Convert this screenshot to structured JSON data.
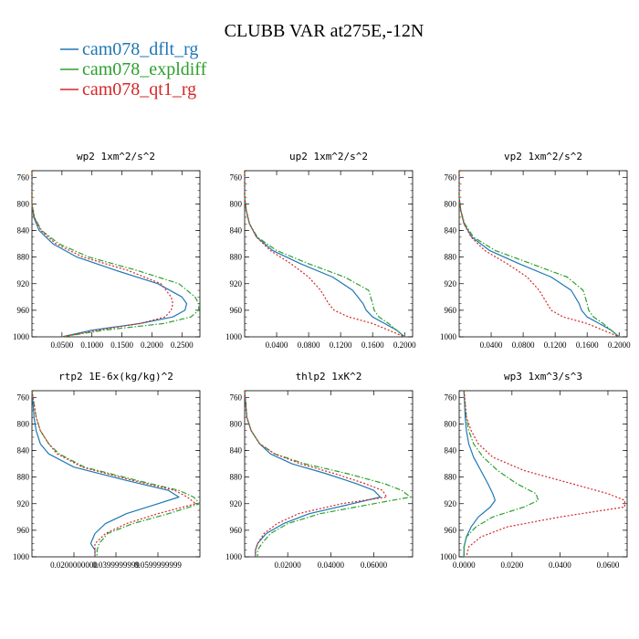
{
  "figure": {
    "title": "CLUBB VAR at275E,-12N"
  },
  "legend": [
    {
      "name": "cam078_dflt_rg",
      "color": "#1f77b4"
    },
    {
      "name": "cam078_expldiff",
      "color": "#2ca02c"
    },
    {
      "name": "cam078_qt1_rg",
      "color": "#d62728"
    }
  ],
  "chart_data": [
    {
      "type": "line",
      "title": "wp2  1xm^2/s^2",
      "xlim": [
        0,
        0.28
      ],
      "ylim": [
        1000,
        750
      ],
      "xticks": [
        "0.0500",
        "0.1000",
        "0.1500",
        "0.2000",
        "0.2500"
      ],
      "xtick_values": [
        0.05,
        0.1,
        0.15,
        0.2,
        0.25
      ],
      "yticks": [
        760,
        800,
        840,
        880,
        920,
        960,
        1000
      ],
      "y": [
        750,
        800,
        820,
        840,
        860,
        880,
        900,
        920,
        940,
        950,
        960,
        970,
        980,
        990,
        1000
      ],
      "series": [
        {
          "name": "cam078_dflt_rg",
          "x": [
            0,
            0,
            0.003,
            0.012,
            0.035,
            0.075,
            0.14,
            0.21,
            0.25,
            0.258,
            0.255,
            0.235,
            0.18,
            0.1,
            0.05
          ],
          "style": "solid"
        },
        {
          "name": "cam078_expldiff",
          "x": [
            0,
            0,
            0.004,
            0.016,
            0.045,
            0.095,
            0.175,
            0.245,
            0.272,
            0.278,
            0.278,
            0.265,
            0.22,
            0.12,
            0.05
          ],
          "style": "dashdot"
        },
        {
          "name": "cam078_qt1_rg",
          "x": [
            0,
            0,
            0.004,
            0.015,
            0.04,
            0.085,
            0.16,
            0.215,
            0.232,
            0.235,
            0.232,
            0.222,
            0.18,
            0.11,
            0.05
          ],
          "style": "dotted"
        }
      ]
    },
    {
      "type": "line",
      "title": "up2  1xm^2/s^2",
      "xlim": [
        0,
        0.21
      ],
      "ylim": [
        1000,
        750
      ],
      "xticks": [
        "0.0400",
        "0.0800",
        "0.1200",
        "0.1600",
        "0.2000"
      ],
      "xtick_values": [
        0.04,
        0.08,
        0.12,
        0.16,
        0.2
      ],
      "yticks": [
        760,
        800,
        840,
        880,
        920,
        960,
        1000
      ],
      "y": [
        750,
        790,
        810,
        830,
        850,
        870,
        890,
        910,
        930,
        950,
        960,
        970,
        980,
        990,
        1000
      ],
      "series": [
        {
          "name": "cam078_dflt_rg",
          "x": [
            0,
            0,
            0.002,
            0.006,
            0.015,
            0.035,
            0.07,
            0.11,
            0.135,
            0.148,
            0.152,
            0.16,
            0.175,
            0.19,
            0.2
          ],
          "style": "solid"
        },
        {
          "name": "cam078_expldiff",
          "x": [
            0,
            0,
            0.002,
            0.006,
            0.016,
            0.04,
            0.08,
            0.125,
            0.155,
            0.16,
            0.162,
            0.168,
            0.18,
            0.19,
            0.2
          ],
          "style": "dashdot"
        },
        {
          "name": "cam078_qt1_rg",
          "x": [
            0,
            0,
            0.002,
            0.006,
            0.015,
            0.032,
            0.058,
            0.08,
            0.095,
            0.105,
            0.112,
            0.13,
            0.16,
            0.18,
            0.2
          ],
          "style": "dotted"
        }
      ]
    },
    {
      "type": "line",
      "title": "vp2  1xm^2/s^2",
      "xlim": [
        0,
        0.21
      ],
      "ylim": [
        1000,
        750
      ],
      "xticks": [
        "0.0400",
        "0.0800",
        "0.1200",
        "0.1600",
        "0.2000"
      ],
      "xtick_values": [
        0.04,
        0.08,
        0.12,
        0.16,
        0.2
      ],
      "yticks": [
        760,
        800,
        840,
        880,
        920,
        960,
        1000
      ],
      "y": [
        750,
        790,
        810,
        830,
        850,
        870,
        890,
        910,
        930,
        950,
        960,
        970,
        980,
        990,
        1000
      ],
      "series": [
        {
          "name": "cam078_dflt_rg",
          "x": [
            0,
            0,
            0.002,
            0.006,
            0.016,
            0.038,
            0.075,
            0.115,
            0.14,
            0.15,
            0.153,
            0.16,
            0.175,
            0.19,
            0.2
          ],
          "style": "solid"
        },
        {
          "name": "cam078_expldiff",
          "x": [
            0,
            0,
            0.002,
            0.007,
            0.018,
            0.045,
            0.09,
            0.135,
            0.155,
            0.16,
            0.162,
            0.168,
            0.18,
            0.19,
            0.2
          ],
          "style": "dashdot"
        },
        {
          "name": "cam078_qt1_rg",
          "x": [
            0,
            0,
            0.002,
            0.006,
            0.015,
            0.032,
            0.06,
            0.085,
            0.1,
            0.11,
            0.115,
            0.13,
            0.16,
            0.18,
            0.2
          ],
          "style": "dotted"
        }
      ]
    },
    {
      "type": "line",
      "title": "rtp2  1E-6x(kg/kg)^2",
      "xlim": [
        0,
        0.08
      ],
      "ylim": [
        1000,
        750
      ],
      "xticks": [
        "0.0200000000",
        "0.0399999999",
        "0.0599999999"
      ],
      "xtick_values": [
        0.02,
        0.04,
        0.06
      ],
      "yticks": [
        760,
        800,
        840,
        880,
        920,
        960,
        1000
      ],
      "y": [
        750,
        790,
        810,
        830,
        845,
        865,
        885,
        900,
        910,
        920,
        935,
        950,
        965,
        980,
        990,
        1000
      ],
      "series": [
        {
          "name": "cam078_dflt_rg",
          "x": [
            0,
            0.001,
            0.002,
            0.004,
            0.008,
            0.02,
            0.045,
            0.065,
            0.07,
            0.06,
            0.045,
            0.035,
            0.03,
            0.028,
            0.03,
            0.03
          ],
          "style": "solid"
        },
        {
          "name": "cam078_expldiff",
          "x": [
            0,
            0.002,
            0.004,
            0.008,
            0.013,
            0.025,
            0.05,
            0.07,
            0.077,
            0.08,
            0.065,
            0.048,
            0.036,
            0.032,
            0.031,
            0.031
          ],
          "style": "dashdot"
        },
        {
          "name": "cam078_qt1_rg",
          "x": [
            0,
            0.002,
            0.004,
            0.008,
            0.012,
            0.024,
            0.048,
            0.068,
            0.074,
            0.078,
            0.06,
            0.045,
            0.035,
            0.03,
            0.03,
            0.03
          ],
          "style": "dotted"
        }
      ]
    },
    {
      "type": "line",
      "title": "thlp2  1xK^2",
      "xlim": [
        0,
        0.078
      ],
      "ylim": [
        1000,
        750
      ],
      "xticks": [
        "0.02000",
        "0.04000",
        "0.06000"
      ],
      "xtick_values": [
        0.02,
        0.04,
        0.06
      ],
      "yticks": [
        760,
        800,
        840,
        880,
        920,
        960,
        1000
      ],
      "y": [
        750,
        790,
        810,
        830,
        845,
        860,
        875,
        890,
        900,
        910,
        920,
        935,
        950,
        965,
        980,
        990,
        1000
      ],
      "series": [
        {
          "name": "cam078_dflt_rg",
          "x": [
            0,
            0.001,
            0.003,
            0.007,
            0.012,
            0.022,
            0.038,
            0.052,
            0.06,
            0.063,
            0.05,
            0.03,
            0.018,
            0.01,
            0.006,
            0.005,
            0.005
          ],
          "style": "solid"
        },
        {
          "name": "cam078_expldiff",
          "x": [
            0,
            0.001,
            0.003,
            0.007,
            0.014,
            0.028,
            0.048,
            0.065,
            0.073,
            0.077,
            0.06,
            0.035,
            0.02,
            0.012,
            0.008,
            0.006,
            0.006
          ],
          "style": "dashdot"
        },
        {
          "name": "cam078_qt1_rg",
          "x": [
            0,
            0.001,
            0.003,
            0.007,
            0.014,
            0.026,
            0.042,
            0.056,
            0.064,
            0.066,
            0.045,
            0.025,
            0.015,
            0.009,
            0.006,
            0.005,
            0.005
          ],
          "style": "dotted"
        }
      ]
    },
    {
      "type": "line",
      "title": "wp3  1xm^3/s^3",
      "xlim": [
        -0.002,
        0.068
      ],
      "ylim": [
        1000,
        750
      ],
      "xticks": [
        "0.0000",
        "0.0200",
        "0.0400",
        "0.0600"
      ],
      "xtick_values": [
        0,
        0.02,
        0.04,
        0.06
      ],
      "yticks": [
        760,
        800,
        840,
        880,
        920,
        960,
        1000
      ],
      "y": [
        750,
        790,
        810,
        830,
        850,
        870,
        890,
        905,
        915,
        925,
        940,
        955,
        970,
        985,
        1000
      ],
      "series": [
        {
          "name": "cam078_dflt_rg",
          "x": [
            0,
            0.0005,
            0.001,
            0.002,
            0.004,
            0.007,
            0.01,
            0.012,
            0.013,
            0.011,
            0.006,
            0.003,
            0.001,
            0,
            0
          ],
          "style": "solid"
        },
        {
          "name": "cam078_expldiff",
          "x": [
            0,
            0.001,
            0.002,
            0.004,
            0.008,
            0.014,
            0.022,
            0.03,
            0.031,
            0.025,
            0.012,
            0.005,
            0.001,
            0,
            0
          ],
          "style": "dashdot"
        },
        {
          "name": "cam078_qt1_rg",
          "x": [
            0,
            0.001,
            0.003,
            0.006,
            0.012,
            0.025,
            0.045,
            0.06,
            0.067,
            0.067,
            0.04,
            0.018,
            0.007,
            0.002,
            0.001
          ],
          "style": "dotted"
        }
      ]
    }
  ]
}
